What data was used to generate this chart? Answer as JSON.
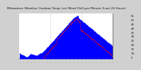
{
  "title": "Milwaukee Weather Outdoor Temp (vs) Wind Chill per Minute (Last 24 Hours)",
  "bg_color": "#d0d0d0",
  "plot_bg_color": "#ffffff",
  "line1_color": "#0000ff",
  "line2_color": "#ff0000",
  "yticks": [
    5,
    10,
    15,
    20,
    25,
    30,
    35,
    40,
    45,
    50,
    55
  ],
  "y_min": 3,
  "y_max": 57,
  "n_points": 1440,
  "grid_color": "#aaaaaa",
  "title_fontsize": 3.2,
  "tick_fontsize": 2.8,
  "n_vlines": 2
}
